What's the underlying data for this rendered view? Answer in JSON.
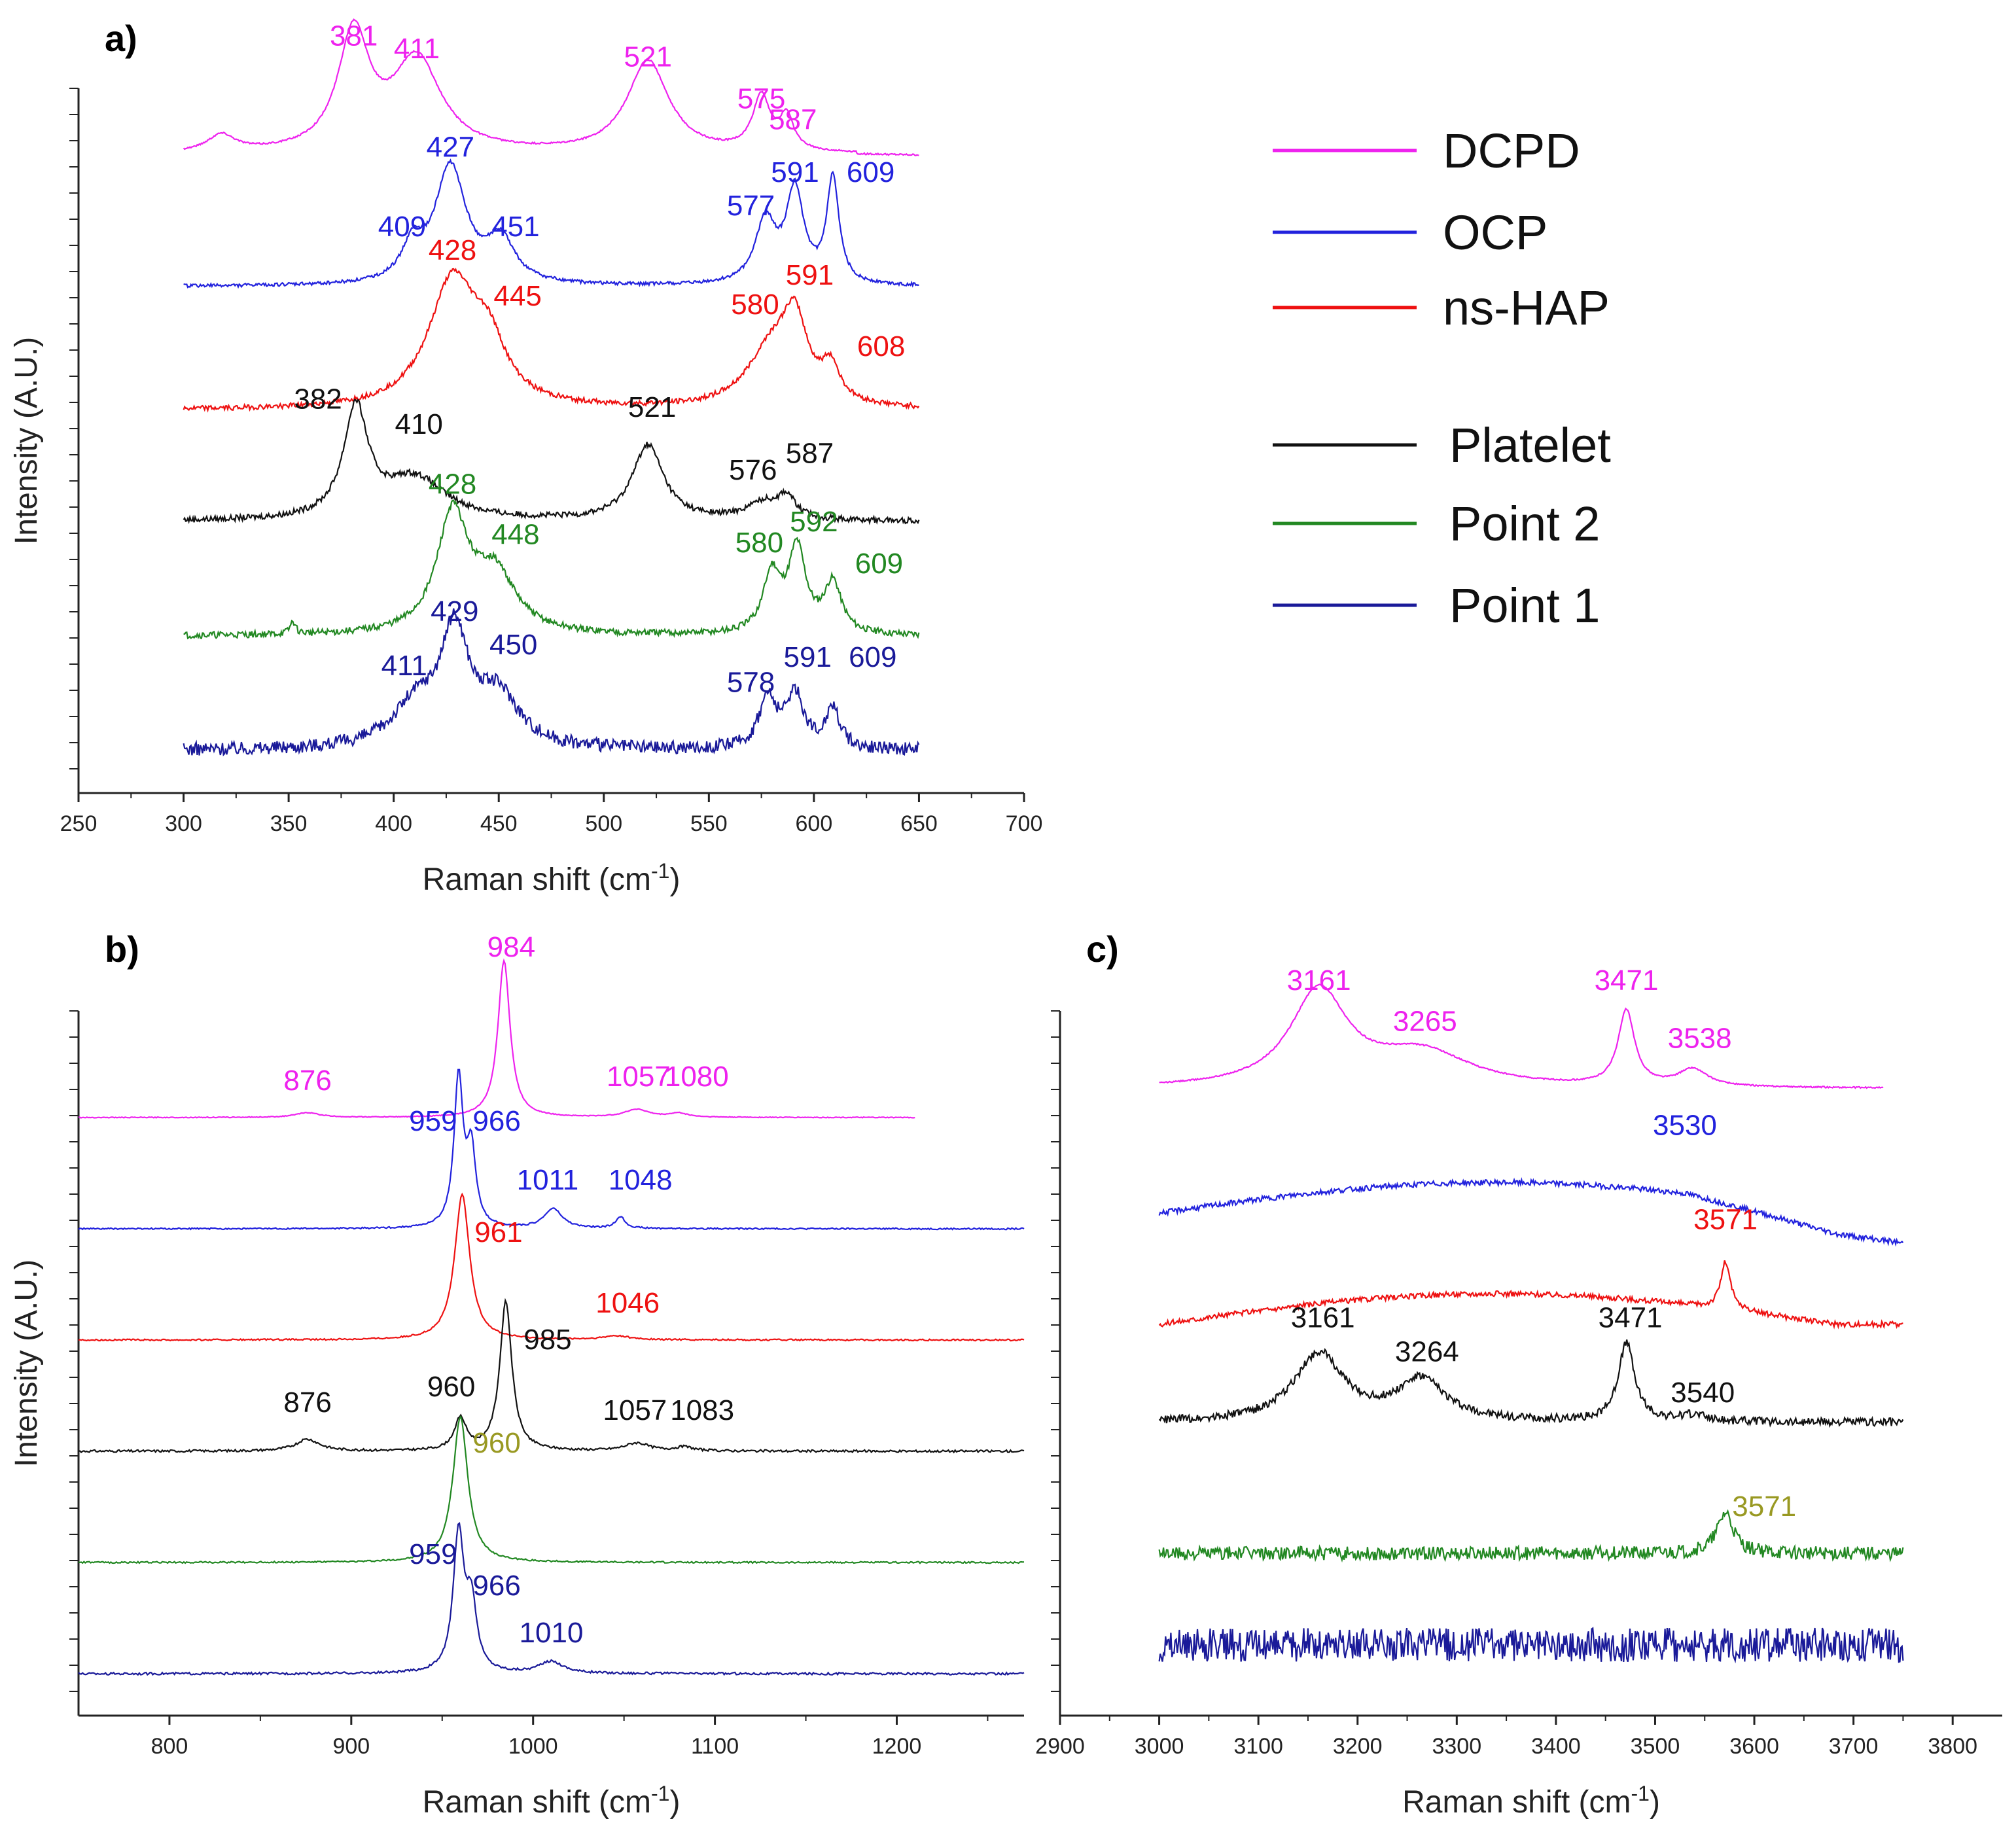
{
  "colors": {
    "DCPD": "#ee22ee",
    "OCP": "#2222dd",
    "ns-HAP": "#ee1111",
    "Platelet": "#111111",
    "Point 2": "#228822",
    "Point 1": "#1a1a99",
    "olive": "#999922"
  },
  "legend": {
    "items": [
      "DCPD",
      "OCP",
      "ns-HAP",
      "Platelet",
      "Point 2",
      "Point 1"
    ]
  },
  "chart_data": [
    {
      "id": "a",
      "panel_label": "a)",
      "type": "line",
      "xlabel": "Raman shift (cm",
      "xlabel_sup": "-1",
      "xlabel_close": ")",
      "ylabel": "Intensity (A.U.)",
      "xlim": [
        250,
        700
      ],
      "xticks": [
        "250",
        "300",
        "350",
        "400",
        "450",
        "500",
        "550",
        "600",
        "650",
        "700"
      ],
      "series": [
        {
          "name": "DCPD",
          "range": [
            300,
            650
          ],
          "baseline": 0.1,
          "peaks": [
            [
              318,
              0.04,
              8
            ],
            [
              381,
              0.28,
              9
            ],
            [
              411,
              0.22,
              14
            ],
            [
              521,
              0.22,
              12
            ],
            [
              575,
              0.13,
              5
            ],
            [
              587,
              0.08,
              4
            ]
          ],
          "labels": [
            {
              "text": "381",
              "x": 381,
              "dy": 0.36
            },
            {
              "text": "411",
              "x": 411,
              "dy": 0.33
            },
            {
              "text": "521",
              "x": 521,
              "dy": 0.31
            },
            {
              "text": "575",
              "x": 575,
              "dy": 0.21
            },
            {
              "text": "587",
              "x": 590,
              "dy": 0.16
            }
          ]
        },
        {
          "name": "OCP",
          "range": [
            300,
            650
          ],
          "baseline": 0.05,
          "peaks": [
            [
              409,
              0.08,
              6
            ],
            [
              427,
              0.28,
              9
            ],
            [
              451,
              0.1,
              8
            ],
            [
              577,
              0.15,
              6
            ],
            [
              591,
              0.22,
              5
            ],
            [
              609,
              0.25,
              3.5
            ]
          ],
          "labels": [
            {
              "text": "409",
              "x": 404,
              "dy": 0.17
            },
            {
              "text": "427",
              "x": 427,
              "dy": 0.36
            },
            {
              "text": "451",
              "x": 458,
              "dy": 0.17
            },
            {
              "text": "577",
              "x": 570,
              "dy": 0.22
            },
            {
              "text": "591",
              "x": 591,
              "dy": 0.3
            },
            {
              "text": "609",
              "x": 627,
              "dy": 0.3
            }
          ]
        },
        {
          "name": "ns-HAP",
          "range": [
            300,
            650
          ],
          "baseline": 0.02,
          "peaks": [
            [
              428,
              0.3,
              14
            ],
            [
              445,
              0.12,
              10
            ],
            [
              580,
              0.14,
              14
            ],
            [
              591,
              0.17,
              7
            ],
            [
              608,
              0.08,
              5
            ]
          ],
          "labels": [
            {
              "text": "428",
              "x": 428,
              "dy": 0.38
            },
            {
              "text": "445",
              "x": 459,
              "dy": 0.27
            },
            {
              "text": "580",
              "x": 572,
              "dy": 0.25
            },
            {
              "text": "591",
              "x": 598,
              "dy": 0.32
            },
            {
              "text": "608",
              "x": 632,
              "dy": 0.15
            }
          ]
        },
        {
          "name": "Platelet",
          "range": [
            300,
            650
          ],
          "baseline": 0.02,
          "peaks": [
            [
              382,
              0.26,
              7
            ],
            [
              410,
              0.1,
              18
            ],
            [
              521,
              0.18,
              9
            ],
            [
              576,
              0.04,
              10
            ],
            [
              587,
              0.05,
              5
            ]
          ],
          "labels": [
            {
              "text": "382",
              "x": 364,
              "dy": 0.29
            },
            {
              "text": "410",
              "x": 412,
              "dy": 0.23
            },
            {
              "text": "521",
              "x": 523,
              "dy": 0.27
            },
            {
              "text": "576",
              "x": 571,
              "dy": 0.12
            },
            {
              "text": "587",
              "x": 598,
              "dy": 0.16
            }
          ]
        },
        {
          "name": "Point 2",
          "range": [
            300,
            650
          ],
          "baseline": 0.02,
          "peaks": [
            [
              352,
              0.03,
              1.5
            ],
            [
              428,
              0.28,
              9
            ],
            [
              448,
              0.14,
              12
            ],
            [
              580,
              0.14,
              5
            ],
            [
              592,
              0.2,
              5
            ],
            [
              609,
              0.12,
              5
            ]
          ],
          "labels": [
            {
              "text": "428",
              "x": 428,
              "dy": 0.36
            },
            {
              "text": "448",
              "x": 458,
              "dy": 0.24
            },
            {
              "text": "580",
              "x": 574,
              "dy": 0.22
            },
            {
              "text": "592",
              "x": 600,
              "dy": 0.27
            },
            {
              "text": "609",
              "x": 631,
              "dy": 0.17
            }
          ]
        },
        {
          "name": "Point 1",
          "range": [
            300,
            650
          ],
          "baseline": 0.02,
          "peaks": [
            [
              411,
              0.1,
              14
            ],
            [
              429,
              0.26,
              8
            ],
            [
              450,
              0.12,
              12
            ],
            [
              578,
              0.12,
              5
            ],
            [
              591,
              0.13,
              5
            ],
            [
              609,
              0.1,
              4
            ]
          ],
          "labels": [
            {
              "text": "411",
              "x": 405,
              "dy": 0.2
            },
            {
              "text": "429",
              "x": 429,
              "dy": 0.33
            },
            {
              "text": "450",
              "x": 457,
              "dy": 0.25
            },
            {
              "text": "578",
              "x": 570,
              "dy": 0.16
            },
            {
              "text": "591",
              "x": 597,
              "dy": 0.22
            },
            {
              "text": "609",
              "x": 628,
              "dy": 0.22
            }
          ]
        }
      ]
    },
    {
      "id": "b",
      "panel_label": "b)",
      "type": "line",
      "xlabel": "Raman shift (cm",
      "xlabel_sup": "-1",
      "xlabel_close": ")",
      "ylabel": "Intensity (A.U.)",
      "xlim": [
        750,
        1270
      ],
      "xticks": [
        "800",
        "900",
        "1000",
        "1100",
        "1200"
      ],
      "series": [
        {
          "name": "DCPD",
          "range": [
            750,
            1210
          ],
          "baseline": 0.02,
          "peaks": [
            [
              876,
              0.012,
              8
            ],
            [
              984,
              0.4,
              4
            ],
            [
              1057,
              0.02,
              8
            ],
            [
              1080,
              0.01,
              6
            ]
          ],
          "labels": [
            {
              "text": "876",
              "x": 876,
              "dy": 0.09
            },
            {
              "text": "984",
              "x": 988,
              "dy": 0.43
            },
            {
              "text": "1057",
              "x": 1058,
              "dy": 0.1
            },
            {
              "text": "1080",
              "x": 1090,
              "dy": 0.1
            }
          ]
        },
        {
          "name": "OCP",
          "range": [
            750,
            1270
          ],
          "baseline": 0.02,
          "peaks": [
            [
              959,
              0.38,
              3
            ],
            [
              966,
              0.19,
              3
            ],
            [
              1011,
              0.05,
              6
            ],
            [
              1048,
              0.03,
              3
            ]
          ],
          "labels": [
            {
              "text": "959",
              "x": 945,
              "dy": 0.27
            },
            {
              "text": "966",
              "x": 980,
              "dy": 0.27
            },
            {
              "text": "1011",
              "x": 1008,
              "dy": 0.12
            },
            {
              "text": "1048",
              "x": 1059,
              "dy": 0.12
            }
          ]
        },
        {
          "name": "ns-HAP",
          "range": [
            750,
            1270
          ],
          "baseline": 0.02,
          "peaks": [
            [
              961,
              0.37,
              5
            ],
            [
              1046,
              0.01,
              8
            ]
          ],
          "labels": [
            {
              "text": "961",
              "x": 981,
              "dy": 0.27
            },
            {
              "text": "1046",
              "x": 1052,
              "dy": 0.09
            }
          ]
        },
        {
          "name": "Platelet",
          "range": [
            750,
            1270
          ],
          "baseline": 0.02,
          "peaks": [
            [
              876,
              0.03,
              8
            ],
            [
              960,
              0.08,
              4
            ],
            [
              985,
              0.38,
              4
            ],
            [
              1057,
              0.02,
              8
            ],
            [
              1083,
              0.01,
              6
            ]
          ],
          "labels": [
            {
              "text": "876",
              "x": 876,
              "dy": 0.12
            },
            {
              "text": "960",
              "x": 955,
              "dy": 0.16
            },
            {
              "text": "985",
              "x": 1008,
              "dy": 0.28
            },
            {
              "text": "1057",
              "x": 1056,
              "dy": 0.1
            },
            {
              "text": "1083",
              "x": 1093,
              "dy": 0.1
            }
          ]
        },
        {
          "name": "Point 2",
          "range": [
            750,
            1270
          ],
          "baseline": 0.02,
          "peaks": [
            [
              960,
              0.37,
              5
            ]
          ],
          "labels": [
            {
              "text": "960",
              "x": 980,
              "dy": 0.3,
              "color": "olive"
            }
          ]
        }
      ]
    },
    {
      "id": "b-bottom",
      "series": [
        {
          "name": "Point 1",
          "range": [
            750,
            1270
          ],
          "baseline": 0.02,
          "peaks": [
            [
              959,
              0.35,
              3.5
            ],
            [
              966,
              0.17,
              3.5
            ],
            [
              1010,
              0.03,
              8
            ]
          ],
          "labels": [
            {
              "text": "959",
              "x": 945,
              "dy": 0.3
            },
            {
              "text": "966",
              "x": 980,
              "dy": 0.22
            },
            {
              "text": "1010",
              "x": 1010,
              "dy": 0.1
            }
          ]
        }
      ]
    },
    {
      "id": "c",
      "panel_label": "c)",
      "type": "line",
      "xlabel": "Raman shift (cm",
      "xlabel_sup": "-1",
      "xlabel_close": ")",
      "xlim": [
        2900,
        3850
      ],
      "xticks": [
        "2900",
        "3000",
        "3100",
        "3200",
        "3300",
        "3400",
        "3500",
        "3600",
        "3700",
        "3800"
      ],
      "series": [
        {
          "name": "DCPD",
          "range": [
            3000,
            3730
          ],
          "baseline": 0.05,
          "peaks": [
            [
              3161,
              0.28,
              35
            ],
            [
              3265,
              0.1,
              60
            ],
            [
              3471,
              0.22,
              10
            ],
            [
              3538,
              0.05,
              18
            ]
          ],
          "labels": [
            {
              "text": "3161",
              "x": 3161,
              "dy": 0.34
            },
            {
              "text": "3265",
              "x": 3268,
              "dy": 0.22
            },
            {
              "text": "3471",
              "x": 3471,
              "dy": 0.34
            },
            {
              "text": "3538",
              "x": 3545,
              "dy": 0.17
            }
          ]
        },
        {
          "name": "OCP",
          "range": [
            3000,
            3750
          ],
          "baseline": 0.05,
          "peaks": [],
          "labels": [
            {
              "text": "3530",
              "x": 3530,
              "dy": 0.28
            }
          ]
        },
        {
          "name": "ns-HAP",
          "range": [
            3000,
            3750
          ],
          "baseline": 0.05,
          "peaks": [
            [
              3571,
              0.14,
              6
            ]
          ],
          "labels": [
            {
              "text": "3571",
              "x": 3571,
              "dy": 0.33
            }
          ]
        },
        {
          "name": "Platelet",
          "range": [
            3000,
            3750
          ],
          "baseline": 0.05,
          "peaks": [
            [
              3161,
              0.2,
              30
            ],
            [
              3264,
              0.12,
              30
            ],
            [
              3471,
              0.23,
              10
            ],
            [
              3540,
              0.02,
              15
            ]
          ],
          "labels": [
            {
              "text": "3161",
              "x": 3165,
              "dy": 0.33
            },
            {
              "text": "3264",
              "x": 3270,
              "dy": 0.23
            },
            {
              "text": "3471",
              "x": 3475,
              "dy": 0.33
            },
            {
              "text": "3540",
              "x": 3548,
              "dy": 0.11
            }
          ]
        },
        {
          "name": "Point 2",
          "range": [
            3000,
            3750
          ],
          "baseline": 0.05,
          "peaks": [
            [
              3571,
              0.12,
              10
            ]
          ],
          "labels": [
            {
              "text": "3571",
              "x": 3610,
              "dy": 0.16,
              "color": "olive"
            }
          ]
        },
        {
          "name": "Point 1",
          "range": [
            3000,
            3750
          ],
          "baseline": 0.05,
          "peaks": [],
          "labels": []
        }
      ]
    }
  ]
}
